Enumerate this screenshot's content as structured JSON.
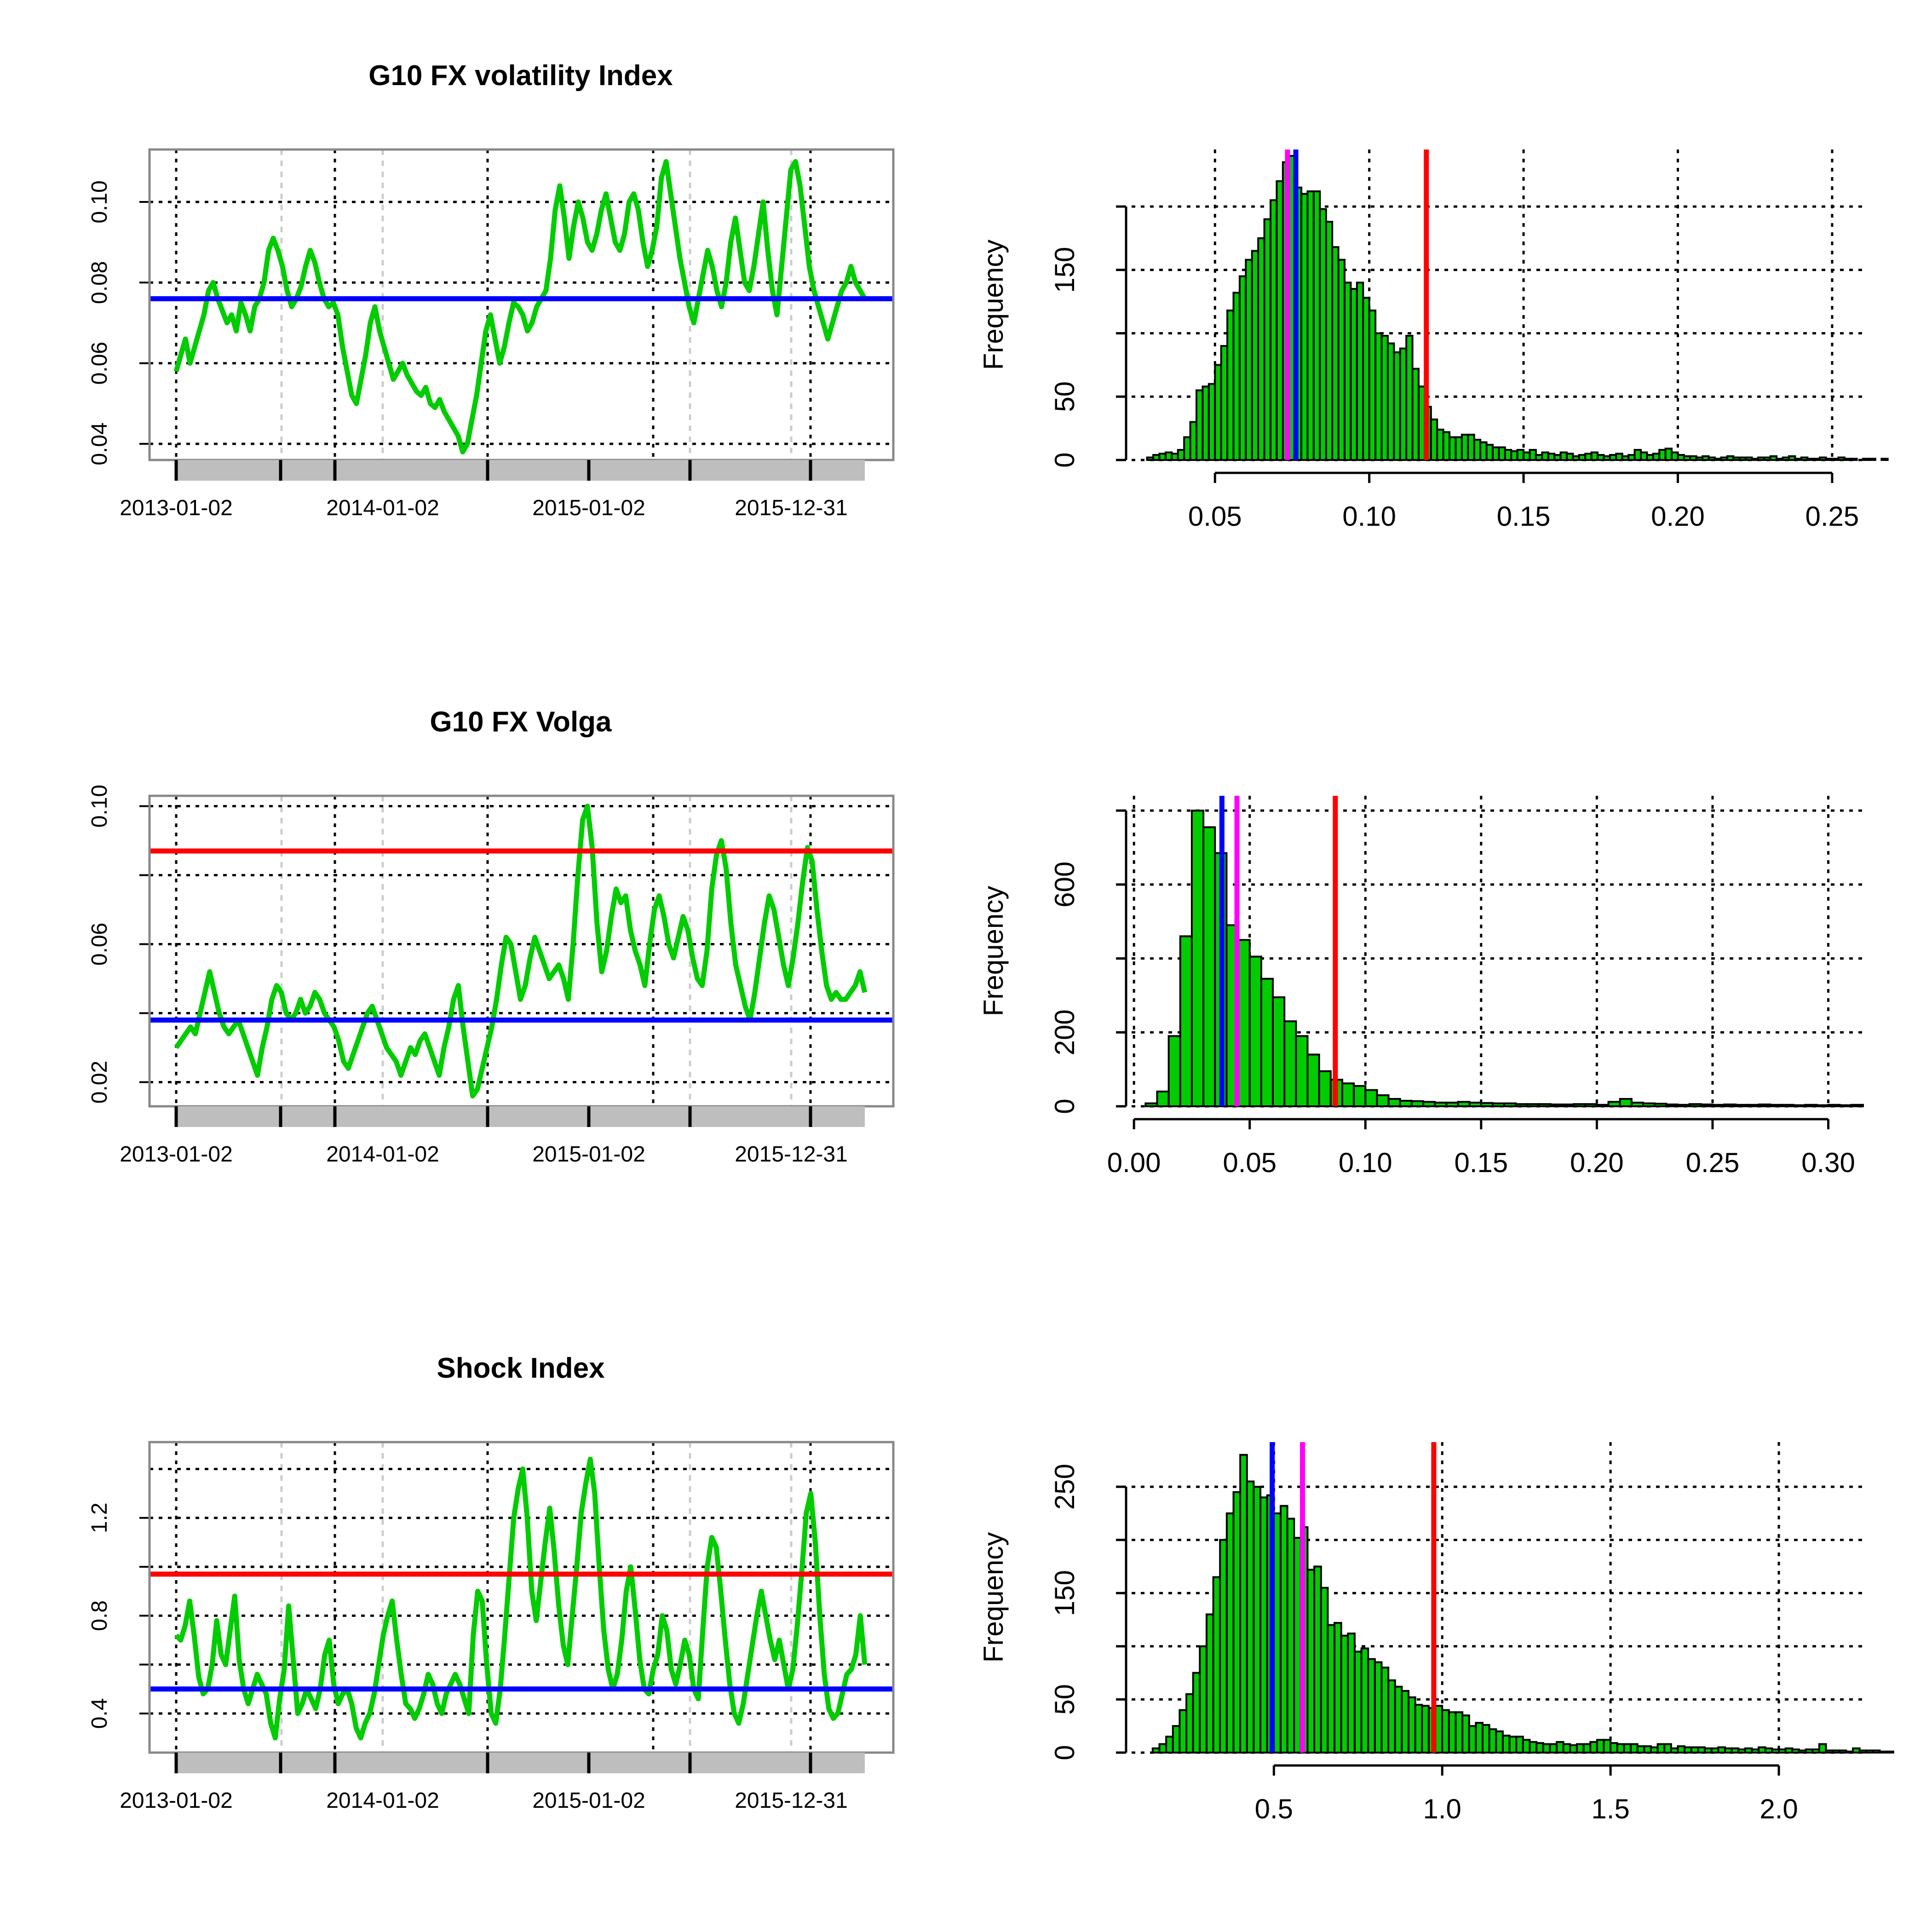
{
  "chart_data": [
    {
      "type": "line",
      "title": "G10 FX volatility Index",
      "x_tick_labels": [
        "2013-01-02",
        "2014-01-02",
        "2015-01-02",
        "2015-12-31"
      ],
      "ylim": [
        0.036,
        0.113
      ],
      "y_ticks": [
        0.04,
        0.06,
        0.08,
        0.1
      ],
      "y_tick_labels": [
        "0.04",
        "0.06",
        "0.08",
        "0.10"
      ],
      "series_color": "#00cc00",
      "hlines": [
        {
          "value": 0.076,
          "color": "#0000ff"
        }
      ],
      "series": {
        "name": "volatility index",
        "values": [
          0.058,
          0.062,
          0.066,
          0.06,
          0.064,
          0.068,
          0.072,
          0.078,
          0.08,
          0.076,
          0.073,
          0.07,
          0.072,
          0.068,
          0.075,
          0.072,
          0.068,
          0.074,
          0.076,
          0.08,
          0.088,
          0.091,
          0.088,
          0.084,
          0.078,
          0.074,
          0.076,
          0.079,
          0.084,
          0.088,
          0.085,
          0.08,
          0.076,
          0.074,
          0.075,
          0.072,
          0.064,
          0.058,
          0.052,
          0.05,
          0.056,
          0.062,
          0.07,
          0.074,
          0.068,
          0.064,
          0.06,
          0.056,
          0.058,
          0.06,
          0.057,
          0.055,
          0.053,
          0.052,
          0.054,
          0.05,
          0.049,
          0.051,
          0.048,
          0.046,
          0.044,
          0.042,
          0.038,
          0.04,
          0.046,
          0.052,
          0.06,
          0.068,
          0.072,
          0.066,
          0.06,
          0.064,
          0.07,
          0.075,
          0.074,
          0.072,
          0.068,
          0.07,
          0.074,
          0.076,
          0.078,
          0.086,
          0.098,
          0.104,
          0.096,
          0.086,
          0.094,
          0.1,
          0.096,
          0.09,
          0.088,
          0.092,
          0.098,
          0.102,
          0.096,
          0.09,
          0.088,
          0.092,
          0.1,
          0.102,
          0.098,
          0.09,
          0.084,
          0.088,
          0.094,
          0.106,
          0.11,
          0.102,
          0.094,
          0.086,
          0.08,
          0.074,
          0.07,
          0.076,
          0.082,
          0.088,
          0.084,
          0.078,
          0.074,
          0.08,
          0.09,
          0.096,
          0.088,
          0.08,
          0.078,
          0.084,
          0.092,
          0.1,
          0.088,
          0.078,
          0.072,
          0.084,
          0.096,
          0.108,
          0.11,
          0.104,
          0.094,
          0.084,
          0.078,
          0.074,
          0.07,
          0.066,
          0.07,
          0.074,
          0.078,
          0.08,
          0.084,
          0.08,
          0.078,
          0.076
        ]
      }
    },
    {
      "type": "histogram",
      "title": "",
      "ylabel": "Frequency",
      "xlim": [
        0.02,
        0.26
      ],
      "x_ticks": [
        0.05,
        0.1,
        0.15,
        0.2,
        0.25
      ],
      "x_tick_labels": [
        "0.05",
        "0.10",
        "0.15",
        "0.20",
        "0.25"
      ],
      "ylim": [
        0,
        245
      ],
      "y_ticks": [
        0,
        50,
        150
      ],
      "y_tick_labels": [
        "0",
        "50",
        "150"
      ],
      "bar_color": "#00cc00",
      "vlines": [
        {
          "value": 0.0735,
          "color": "#ff00ff"
        },
        {
          "value": 0.0762,
          "color": "#0000ff"
        },
        {
          "value": 0.1185,
          "color": "#ff0000"
        }
      ],
      "bins_start": 0.028,
      "bin_width": 0.002,
      "counts": [
        2,
        4,
        5,
        6,
        5,
        8,
        18,
        30,
        55,
        58,
        60,
        75,
        90,
        118,
        132,
        145,
        158,
        165,
        175,
        190,
        205,
        220,
        235,
        240,
        215,
        210,
        212,
        212,
        198,
        188,
        168,
        158,
        140,
        135,
        140,
        128,
        118,
        100,
        98,
        92,
        85,
        88,
        98,
        72,
        58,
        42,
        32,
        24,
        22,
        18,
        18,
        20,
        20,
        16,
        14,
        12,
        10,
        10,
        8,
        7,
        8,
        6,
        8,
        4,
        6,
        5,
        4,
        6,
        5,
        3,
        4,
        5,
        6,
        4,
        3,
        4,
        5,
        3,
        4,
        8,
        6,
        4,
        5,
        8,
        9,
        6,
        4,
        3,
        3,
        2,
        3,
        2,
        1,
        2,
        3,
        2,
        2,
        2,
        1,
        2,
        2,
        3,
        1,
        2,
        3,
        1,
        2,
        1,
        1,
        2,
        1,
        1,
        2,
        1,
        1,
        0,
        1,
        1,
        0,
        1
      ]
    },
    {
      "type": "line",
      "title": "G10 FX Volga",
      "x_tick_labels": [
        "2013-01-02",
        "2014-01-02",
        "2015-01-02",
        "2015-12-31"
      ],
      "ylim": [
        0.013,
        0.103
      ],
      "y_ticks": [
        0.02,
        0.06,
        0.1
      ],
      "y_tick_labels": [
        "0.02",
        "0.06",
        "0.10"
      ],
      "series_color": "#00cc00",
      "hlines": [
        {
          "value": 0.038,
          "color": "#0000ff"
        },
        {
          "value": 0.087,
          "color": "#ff0000"
        }
      ],
      "series": {
        "name": "volga",
        "values": [
          0.03,
          0.032,
          0.034,
          0.036,
          0.034,
          0.04,
          0.046,
          0.052,
          0.046,
          0.04,
          0.036,
          0.034,
          0.036,
          0.038,
          0.034,
          0.03,
          0.026,
          0.022,
          0.03,
          0.036,
          0.044,
          0.048,
          0.046,
          0.04,
          0.038,
          0.04,
          0.044,
          0.04,
          0.042,
          0.046,
          0.044,
          0.04,
          0.038,
          0.036,
          0.032,
          0.026,
          0.024,
          0.028,
          0.032,
          0.036,
          0.04,
          0.042,
          0.038,
          0.034,
          0.03,
          0.028,
          0.026,
          0.022,
          0.026,
          0.03,
          0.028,
          0.032,
          0.034,
          0.03,
          0.026,
          0.022,
          0.03,
          0.036,
          0.044,
          0.048,
          0.036,
          0.026,
          0.016,
          0.018,
          0.024,
          0.03,
          0.036,
          0.044,
          0.054,
          0.062,
          0.06,
          0.052,
          0.044,
          0.048,
          0.056,
          0.062,
          0.058,
          0.054,
          0.05,
          0.052,
          0.054,
          0.05,
          0.044,
          0.06,
          0.08,
          0.096,
          0.1,
          0.088,
          0.066,
          0.052,
          0.058,
          0.068,
          0.076,
          0.072,
          0.074,
          0.064,
          0.058,
          0.054,
          0.048,
          0.06,
          0.07,
          0.074,
          0.068,
          0.06,
          0.056,
          0.062,
          0.068,
          0.064,
          0.056,
          0.05,
          0.048,
          0.058,
          0.076,
          0.086,
          0.09,
          0.082,
          0.066,
          0.054,
          0.048,
          0.042,
          0.038,
          0.046,
          0.056,
          0.066,
          0.074,
          0.07,
          0.062,
          0.054,
          0.048,
          0.056,
          0.066,
          0.078,
          0.088,
          0.084,
          0.07,
          0.058,
          0.048,
          0.044,
          0.046,
          0.044,
          0.044,
          0.046,
          0.048,
          0.052,
          0.046
        ]
      }
    },
    {
      "type": "histogram",
      "title": "",
      "ylabel": "Frequency",
      "xlim": [
        -0.005,
        0.315
      ],
      "x_ticks": [
        0.0,
        0.05,
        0.1,
        0.15,
        0.2,
        0.25,
        0.3
      ],
      "x_tick_labels": [
        "0.00",
        "0.05",
        "0.10",
        "0.15",
        "0.20",
        "0.25",
        "0.30"
      ],
      "ylim": [
        0,
        840
      ],
      "y_ticks": [
        0,
        200,
        600
      ],
      "y_tick_labels": [
        "0",
        "200",
        "600"
      ],
      "bar_color": "#00cc00",
      "vlines": [
        {
          "value": 0.038,
          "color": "#0000ff"
        },
        {
          "value": 0.0445,
          "color": "#ff00ff"
        },
        {
          "value": 0.087,
          "color": "#ff0000"
        }
      ],
      "bins_start": 0.005,
      "bin_width": 0.005,
      "counts": [
        8,
        40,
        190,
        460,
        800,
        755,
        685,
        490,
        450,
        405,
        345,
        295,
        230,
        190,
        140,
        95,
        72,
        62,
        55,
        44,
        30,
        20,
        15,
        14,
        12,
        10,
        10,
        12,
        10,
        9,
        8,
        8,
        6,
        6,
        6,
        5,
        5,
        6,
        6,
        4,
        12,
        20,
        10,
        8,
        7,
        5,
        4,
        6,
        5,
        4,
        5,
        4,
        4,
        5,
        4,
        4,
        3,
        4,
        3,
        4,
        3,
        4
      ]
    },
    {
      "type": "line",
      "title": "Shock Index",
      "x_tick_labels": [
        "2013-01-02",
        "2014-01-02",
        "2015-01-02",
        "2015-12-31"
      ],
      "ylim": [
        0.24,
        1.51
      ],
      "y_ticks": [
        0.4,
        0.8,
        1.2
      ],
      "y_tick_labels": [
        "0.4",
        "0.8",
        "1.2"
      ],
      "series_color": "#00cc00",
      "hlines": [
        {
          "value": 0.5,
          "color": "#0000ff"
        },
        {
          "value": 0.97,
          "color": "#ff0000"
        }
      ],
      "series": {
        "name": "shock index",
        "values": [
          0.72,
          0.7,
          0.76,
          0.86,
          0.72,
          0.55,
          0.48,
          0.5,
          0.6,
          0.78,
          0.64,
          0.6,
          0.74,
          0.88,
          0.62,
          0.5,
          0.44,
          0.5,
          0.56,
          0.52,
          0.48,
          0.36,
          0.3,
          0.46,
          0.58,
          0.84,
          0.62,
          0.4,
          0.44,
          0.5,
          0.46,
          0.42,
          0.5,
          0.64,
          0.7,
          0.52,
          0.44,
          0.48,
          0.5,
          0.44,
          0.34,
          0.3,
          0.36,
          0.4,
          0.48,
          0.6,
          0.72,
          0.8,
          0.86,
          0.7,
          0.56,
          0.44,
          0.42,
          0.38,
          0.42,
          0.48,
          0.56,
          0.52,
          0.44,
          0.4,
          0.48,
          0.52,
          0.56,
          0.52,
          0.46,
          0.4,
          0.72,
          0.9,
          0.86,
          0.6,
          0.4,
          0.36,
          0.5,
          0.72,
          0.96,
          1.2,
          1.32,
          1.4,
          1.2,
          0.9,
          0.78,
          0.94,
          1.1,
          1.24,
          1.06,
          0.84,
          0.68,
          0.6,
          0.8,
          1.0,
          1.22,
          1.34,
          1.44,
          1.3,
          1.0,
          0.74,
          0.58,
          0.5,
          0.56,
          0.7,
          0.9,
          1.0,
          0.82,
          0.62,
          0.5,
          0.48,
          0.58,
          0.64,
          0.8,
          0.74,
          0.58,
          0.52,
          0.6,
          0.7,
          0.64,
          0.5,
          0.46,
          0.74,
          1.0,
          1.12,
          1.08,
          0.9,
          0.7,
          0.52,
          0.4,
          0.36,
          0.44,
          0.56,
          0.68,
          0.8,
          0.9,
          0.8,
          0.7,
          0.62,
          0.7,
          0.6,
          0.5,
          0.58,
          0.76,
          0.98,
          1.22,
          1.3,
          1.1,
          0.8,
          0.56,
          0.42,
          0.38,
          0.4,
          0.48,
          0.56,
          0.58,
          0.64,
          0.8,
          0.6
        ]
      }
    },
    {
      "type": "histogram",
      "title": "",
      "ylabel": "Frequency",
      "xlim": [
        0.05,
        2.25
      ],
      "x_ticks": [
        0.5,
        1.0,
        1.5,
        2.0
      ],
      "x_tick_labels": [
        "0.5",
        "1.0",
        "1.5",
        "2.0"
      ],
      "ylim": [
        0,
        292
      ],
      "y_ticks": [
        0,
        50,
        150,
        250
      ],
      "y_tick_labels": [
        "0",
        "50",
        "150",
        "250"
      ],
      "bar_color": "#00cc00",
      "vlines": [
        {
          "value": 0.495,
          "color": "#0000ff"
        },
        {
          "value": 0.585,
          "color": "#ff00ff"
        },
        {
          "value": 0.975,
          "color": "#ff0000"
        }
      ],
      "bins_start": 0.14,
      "bin_width": 0.02,
      "counts": [
        4,
        8,
        15,
        25,
        40,
        55,
        75,
        100,
        130,
        165,
        200,
        225,
        245,
        280,
        255,
        250,
        240,
        242,
        225,
        232,
        220,
        202,
        212,
        172,
        175,
        155,
        120,
        122,
        110,
        112,
        95,
        98,
        88,
        85,
        80,
        68,
        62,
        58,
        52,
        45,
        44,
        42,
        44,
        40,
        38,
        38,
        35,
        25,
        28,
        26,
        22,
        20,
        16,
        15,
        15,
        12,
        10,
        9,
        8,
        8,
        10,
        8,
        7,
        8,
        8,
        10,
        12,
        12,
        9,
        8,
        8,
        8,
        6,
        6,
        5,
        8,
        8,
        4,
        6,
        5,
        5,
        5,
        4,
        4,
        5,
        4,
        4,
        3,
        4,
        3,
        5,
        4,
        3,
        3,
        4,
        3,
        2,
        3,
        3,
        8,
        2,
        2,
        2,
        1,
        4,
        2,
        2,
        2,
        1,
        1
      ]
    }
  ]
}
